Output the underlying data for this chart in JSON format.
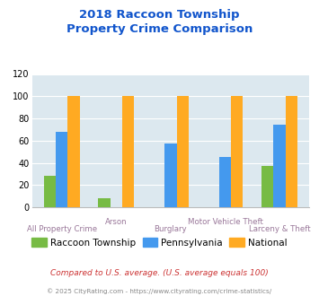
{
  "title": "2018 Raccoon Township\nProperty Crime Comparison",
  "categories": [
    "All Property Crime",
    "Arson",
    "Burglary",
    "Motor Vehicle Theft",
    "Larceny & Theft"
  ],
  "series": {
    "Raccoon Township": [
      28,
      8,
      0,
      0,
      37
    ],
    "Pennsylvania": [
      68,
      0,
      57,
      45,
      74
    ],
    "National": [
      100,
      100,
      100,
      100,
      100
    ]
  },
  "colors": {
    "Raccoon Township": "#77bb44",
    "Pennsylvania": "#4499ee",
    "National": "#ffaa22"
  },
  "ylim": [
    0,
    120
  ],
  "yticks": [
    0,
    20,
    40,
    60,
    80,
    100,
    120
  ],
  "background_color": "#dce8ef",
  "title_color": "#1155cc",
  "subtitle_text": "Compared to U.S. average. (U.S. average equals 100)",
  "subtitle_color": "#cc3333",
  "footer_text": "© 2025 CityRating.com - https://www.cityrating.com/crime-statistics/",
  "footer_color": "#888888",
  "xlabel_color": "#997799",
  "bar_width": 0.22
}
